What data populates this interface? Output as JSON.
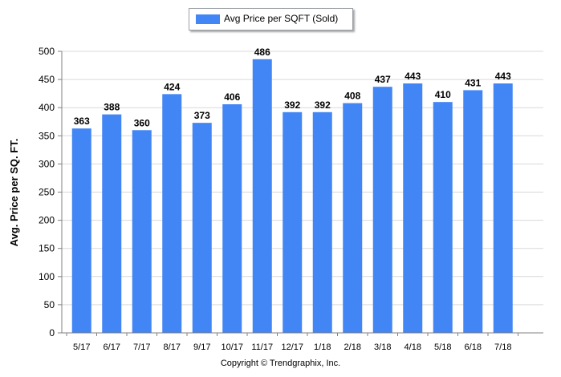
{
  "chart_data": {
    "type": "bar",
    "categories": [
      "5/17",
      "6/17",
      "7/17",
      "8/17",
      "9/17",
      "10/17",
      "11/17",
      "12/17",
      "1/18",
      "2/18",
      "3/18",
      "4/18",
      "5/18",
      "6/18",
      "7/18"
    ],
    "series": [
      {
        "name": "Avg Price per SQFT (Sold)",
        "values": [
          363,
          388,
          360,
          424,
          373,
          406,
          486,
          392,
          392,
          408,
          437,
          443,
          410,
          431,
          443
        ]
      }
    ],
    "ylabel": "Avg. Price per SQ. FT.",
    "xlabel": "",
    "ylim": [
      0,
      500
    ],
    "yticks": [
      0,
      50,
      100,
      150,
      200,
      250,
      300,
      350,
      400,
      450,
      500
    ],
    "grid": true,
    "legend": "top-center",
    "bar_color": "#4285f4",
    "data_labels": true
  },
  "legend": {
    "label": "Avg Price per SQFT (Sold)"
  },
  "footer": {
    "copyright": "Copyright © Trendgraphix, Inc."
  }
}
